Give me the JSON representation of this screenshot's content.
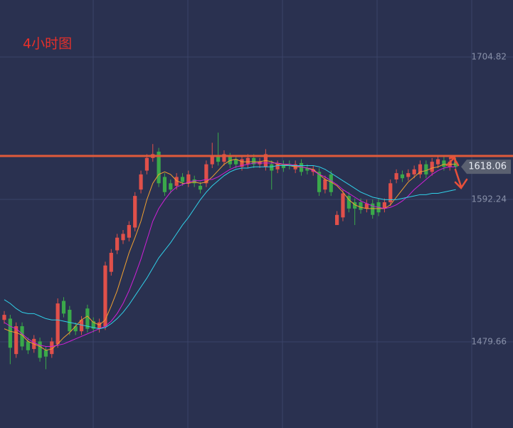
{
  "chart_data": {
    "type": "candlestick",
    "title": "4小时图",
    "ylim": [
      1411.55,
      1749.85
    ],
    "yticks": [
      1479.66,
      1592.24,
      1704.82
    ],
    "hline": 1626.6,
    "last_price": 1618.06,
    "up_color": "#e0504a",
    "down_color": "#3aa84a",
    "candles": {
      "open": [
        1497,
        1498,
        1470,
        1492,
        1480,
        1474,
        1480,
        1473,
        1470,
        1478,
        1512,
        1505,
        1492,
        1488,
        1506,
        1496,
        1490,
        1492,
        1535,
        1552,
        1560,
        1562,
        1570,
        1600,
        1615,
        1625,
        1630,
        1610,
        1605,
        1603,
        1610,
        1605,
        1608,
        1603,
        1605,
        1620,
        1626,
        1622,
        1626,
        1624,
        1618,
        1620,
        1625,
        1620,
        1618,
        1620,
        1616,
        1620,
        1620,
        1616,
        1621,
        1617,
        1614,
        1614,
        1600,
        1612,
        1572,
        1578,
        1595,
        1590,
        1590,
        1585,
        1589,
        1590,
        1585,
        1590,
        1608,
        1612,
        1610,
        1612,
        1612,
        1620,
        1614,
        1620,
        1623,
        1618,
        1622
      ],
      "high": [
        1504,
        1501,
        1495,
        1495,
        1483,
        1485,
        1483,
        1476,
        1483,
        1514,
        1515,
        1508,
        1495,
        1500,
        1509,
        1499,
        1498,
        1543,
        1553,
        1565,
        1568,
        1575,
        1598,
        1615,
        1628,
        1636,
        1633,
        1613,
        1608,
        1613,
        1613,
        1615,
        1611,
        1606,
        1623,
        1637,
        1645,
        1631,
        1629,
        1627,
        1627,
        1628,
        1628,
        1625,
        1632,
        1623,
        1623,
        1623,
        1623,
        1623,
        1624,
        1620,
        1619,
        1617,
        1611,
        1615,
        1583,
        1600,
        1598,
        1593,
        1593,
        1592,
        1592,
        1593,
        1593,
        1608,
        1616,
        1615,
        1616,
        1619,
        1623,
        1623,
        1625,
        1627,
        1626,
        1625,
        1625
      ],
      "low": [
        1494,
        1462,
        1467,
        1473,
        1470,
        1471,
        1464,
        1458,
        1467,
        1475,
        1499,
        1485,
        1485,
        1485,
        1487,
        1487,
        1487,
        1489,
        1532,
        1549,
        1557,
        1559,
        1567,
        1597,
        1612,
        1622,
        1602,
        1595,
        1597,
        1600,
        1603,
        1602,
        1602,
        1597,
        1602,
        1617,
        1619,
        1619,
        1617,
        1617,
        1615,
        1617,
        1617,
        1617,
        1615,
        1600,
        1613,
        1614,
        1616,
        1613,
        1611,
        1612,
        1611,
        1595,
        1597,
        1595,
        1575,
        1575,
        1582,
        1572,
        1581,
        1582,
        1577,
        1579,
        1582,
        1587,
        1605,
        1606,
        1607,
        1609,
        1609,
        1609,
        1611,
        1617,
        1615,
        1615,
        1615
      ],
      "close": [
        1501,
        1475,
        1492,
        1476,
        1473,
        1482,
        1467,
        1468,
        1480,
        1510,
        1502,
        1488,
        1488,
        1497,
        1490,
        1490,
        1495,
        1540,
        1550,
        1562,
        1565,
        1572,
        1595,
        1612,
        1625,
        1628,
        1605,
        1598,
        1600,
        1610,
        1606,
        1612,
        1605,
        1600,
        1620,
        1626,
        1622,
        1628,
        1620,
        1620,
        1624,
        1625,
        1620,
        1622,
        1628,
        1615,
        1620,
        1617,
        1619,
        1620,
        1614,
        1615,
        1616,
        1598,
        1608,
        1598,
        1580,
        1597,
        1585,
        1585,
        1584,
        1589,
        1580,
        1582,
        1590,
        1605,
        1613,
        1609,
        1613,
        1616,
        1620,
        1612,
        1622,
        1624,
        1618,
        1622,
        1618
      ]
    },
    "series": [
      {
        "color": "#f0a030",
        "values": [
          1490,
          1488,
          1487,
          1485,
          1480,
          1478,
          1476,
          1473,
          1474,
          1478,
          1483,
          1487,
          1492,
          1497,
          1500,
          1495,
          1493,
          1497,
          1508,
          1520,
          1535,
          1550,
          1562,
          1575,
          1592,
          1605,
          1612,
          1614,
          1612,
          1607,
          1605,
          1605,
          1606,
          1605,
          1606,
          1610,
          1615,
          1620,
          1623,
          1624,
          1622,
          1622,
          1622,
          1622,
          1623,
          1622,
          1620,
          1620,
          1619,
          1618,
          1618,
          1617,
          1616,
          1612,
          1608,
          1606,
          1603,
          1598,
          1592,
          1588,
          1586,
          1585,
          1585,
          1585,
          1585,
          1588,
          1594,
          1600,
          1606,
          1610,
          1614,
          1615,
          1617,
          1618,
          1620,
          1620,
          1620
        ]
      },
      {
        "color": "#d020d8",
        "values": [
          1495,
          1492,
          1490,
          1486,
          1482,
          1479,
          1477,
          1476,
          1476,
          1477,
          1478,
          1480,
          1482,
          1484,
          1486,
          1488,
          1490,
          1492,
          1496,
          1502,
          1510,
          1520,
          1532,
          1545,
          1560,
          1575,
          1585,
          1592,
          1598,
          1602,
          1604,
          1606,
          1607,
          1607,
          1608,
          1608,
          1610,
          1613,
          1616,
          1618,
          1619,
          1620,
          1621,
          1621,
          1621,
          1621,
          1621,
          1620,
          1620,
          1619,
          1618,
          1617,
          1615,
          1612,
          1610,
          1607,
          1604,
          1600,
          1597,
          1594,
          1591,
          1589,
          1587,
          1586,
          1585,
          1586,
          1588,
          1591,
          1595,
          1600,
          1604,
          1608,
          1612,
          1615,
          1617,
          1618,
          1618
        ]
      },
      {
        "color": "#30d0e8",
        "values": [
          1513,
          1510,
          1506,
          1503,
          1502,
          1502,
          1500,
          1498,
          1497,
          1497,
          1496,
          1495,
          1494,
          1493,
          1492,
          1491,
          1490,
          1491,
          1494,
          1498,
          1503,
          1509,
          1516,
          1523,
          1530,
          1538,
          1546,
          1552,
          1558,
          1565,
          1572,
          1578,
          1585,
          1592,
          1598,
          1603,
          1607,
          1611,
          1614,
          1616,
          1617,
          1617,
          1618,
          1618,
          1618,
          1618,
          1619,
          1619,
          1619,
          1619,
          1619,
          1619,
          1619,
          1618,
          1616,
          1613,
          1610,
          1607,
          1604,
          1601,
          1598,
          1596,
          1594,
          1593,
          1592,
          1592,
          1592,
          1593,
          1594,
          1595,
          1596,
          1596,
          1597,
          1597,
          1598,
          1599,
          1600
        ]
      }
    ]
  }
}
